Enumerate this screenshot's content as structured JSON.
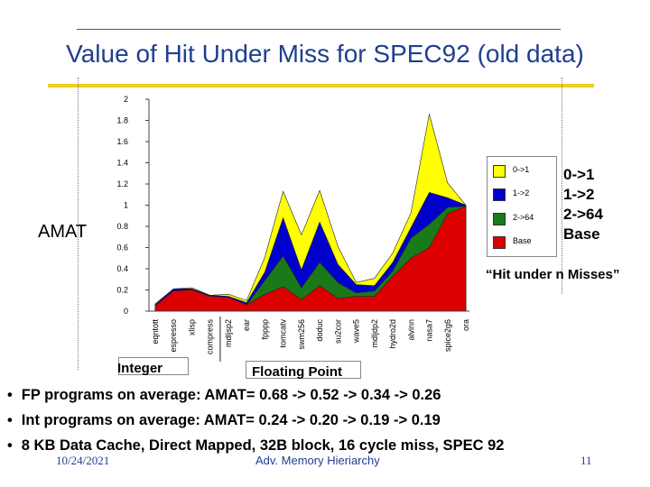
{
  "title": "Value of Hit Under Miss for SPEC92 (old data)",
  "side_label": "AMAT",
  "hit_labels": [
    "0->1",
    "1->2",
    "2->64",
    "Base"
  ],
  "hit_under": "“Hit under n Misses”",
  "group_labels": {
    "integer": "Integer",
    "floating_point": "Floating Point"
  },
  "bullets": [
    "FP programs on average: AMAT= 0.68 -> 0.52 -> 0.34 -> 0.26",
    "Int programs on average: AMAT= 0.24 -> 0.20 -> 0.19 -> 0.19",
    "8 KB Data Cache, Direct Mapped, 32B block, 16 cycle miss, SPEC 92"
  ],
  "bullet_glyph": "•",
  "footer": {
    "date": "10/24/2021",
    "center": "Adv. Memory Hieriarchy",
    "page": "11"
  },
  "colors": {
    "title": "#1f3f8f",
    "accent": "#f2cc1a",
    "yellow": "#ffff00",
    "blue": "#0000cc",
    "green": "#1a7a1a",
    "red": "#dd0000"
  },
  "chart_data": {
    "type": "area",
    "title": "",
    "ylabel": "AMAT",
    "xlabel": "",
    "ylim": [
      0,
      2
    ],
    "yticks": [
      "0",
      "0.2",
      "0.4",
      "0.6",
      "0.8",
      "1",
      "1.2",
      "1.4",
      "1.6",
      "1.8",
      "2"
    ],
    "categories": [
      "eqntott",
      "espresso",
      "xlisp",
      "compress",
      "mdljsp2",
      "ear",
      "fpppp",
      "tomcatv",
      "swm256",
      "doduc",
      "su2cor",
      "wave5",
      "mdljdp2",
      "hydro2d",
      "alvinn",
      "nasa7",
      "spice2g6",
      "ora"
    ],
    "legend": [
      "0->1",
      "1->2",
      "2->64",
      "Base"
    ],
    "series": [
      {
        "name": "Base",
        "values": [
          0.05,
          0.19,
          0.2,
          0.14,
          0.13,
          0.06,
          0.16,
          0.23,
          0.11,
          0.24,
          0.12,
          0.14,
          0.14,
          0.33,
          0.5,
          0.6,
          0.92,
          0.99
        ]
      },
      {
        "name": "2->64",
        "values": [
          0.05,
          0.19,
          0.2,
          0.14,
          0.13,
          0.06,
          0.29,
          0.52,
          0.22,
          0.46,
          0.27,
          0.17,
          0.19,
          0.38,
          0.69,
          0.82,
          0.98,
          0.99
        ]
      },
      {
        "name": "1->2",
        "values": [
          0.06,
          0.21,
          0.21,
          0.15,
          0.14,
          0.08,
          0.37,
          0.88,
          0.39,
          0.84,
          0.44,
          0.25,
          0.24,
          0.46,
          0.79,
          1.12,
          1.07,
          1.0
        ]
      },
      {
        "name": "0->1",
        "values": [
          0.07,
          0.21,
          0.22,
          0.15,
          0.16,
          0.1,
          0.51,
          1.13,
          0.72,
          1.14,
          0.61,
          0.27,
          0.31,
          0.55,
          0.93,
          1.86,
          1.21,
          1.0
        ]
      }
    ]
  }
}
